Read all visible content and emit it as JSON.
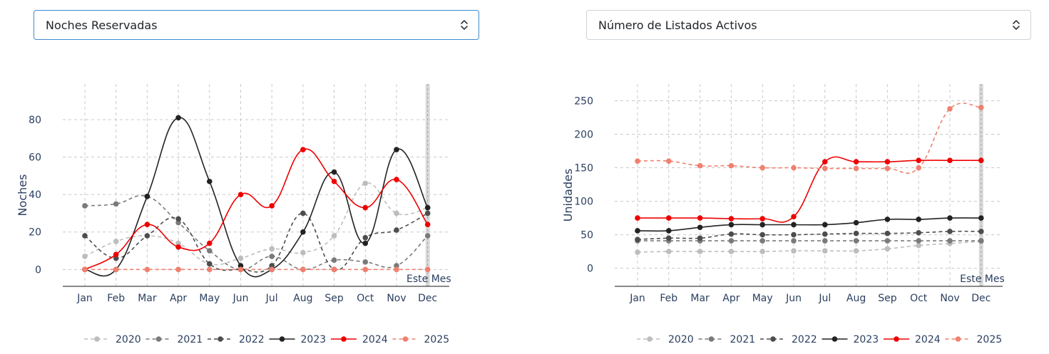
{
  "dropdowns": {
    "left": {
      "value": "Noches Reservadas",
      "icon": "chevron-updown-icon"
    },
    "right": {
      "value": "Número de Listados Activos",
      "icon": "chevron-updown-icon"
    }
  },
  "styles": {
    "2020": {
      "color": "#bdbdbd",
      "dash": "5,4"
    },
    "2021": {
      "color": "#7a7a7a",
      "dash": "5,4"
    },
    "2022": {
      "color": "#4d4d4d",
      "dash": "5,4"
    },
    "2023": {
      "color": "#222222",
      "dash": ""
    },
    "2024": {
      "color": "#ee0000",
      "dash": ""
    },
    "2025": {
      "color": "#f08070",
      "dash": "5,4"
    }
  },
  "chart_data": [
    {
      "type": "line",
      "ylabel": "Noches",
      "xlabel": "",
      "categories": [
        "Jan",
        "Feb",
        "Mar",
        "Apr",
        "May",
        "Jun",
        "Jul",
        "Aug",
        "Sep",
        "Oct",
        "Nov",
        "Dec"
      ],
      "ylim": [
        -9,
        99
      ],
      "yticks": [
        0,
        20,
        40,
        60,
        80
      ],
      "grid": true,
      "current_marker": "Dec",
      "current_label": "Este Mes",
      "legend_position": "bottom",
      "series": [
        {
          "name": "2020",
          "values": [
            7,
            15,
            18,
            14,
            3,
            6,
            11,
            9,
            18,
            46,
            30,
            33
          ]
        },
        {
          "name": "2021",
          "values": [
            34,
            35,
            39,
            25,
            10,
            0,
            7,
            0,
            5,
            4,
            2,
            18
          ]
        },
        {
          "name": "2022",
          "values": [
            18,
            6,
            18,
            27,
            3,
            0,
            2,
            30,
            0,
            17,
            21,
            30
          ]
        },
        {
          "name": "2023",
          "values": [
            0,
            0,
            39,
            81,
            47,
            2,
            0,
            20,
            52,
            14,
            64,
            33
          ]
        },
        {
          "name": "2024",
          "values": [
            0,
            8,
            24,
            12,
            14,
            40,
            34,
            64,
            47,
            33,
            48,
            24
          ]
        },
        {
          "name": "2025",
          "values": [
            0,
            0,
            0,
            0,
            0,
            0,
            0,
            0,
            0,
            0,
            0,
            0
          ]
        }
      ]
    },
    {
      "type": "line",
      "ylabel": "Unidades",
      "xlabel": "",
      "categories": [
        "Jan",
        "Feb",
        "Mar",
        "Apr",
        "May",
        "Jun",
        "Jul",
        "Aug",
        "Sep",
        "Oct",
        "Nov",
        "Dec"
      ],
      "ylim": [
        -27,
        275
      ],
      "yticks": [
        0,
        50,
        100,
        150,
        200,
        250
      ],
      "grid": true,
      "current_marker": "Dec",
      "current_label": "Este Mes",
      "legend_position": "bottom",
      "series": [
        {
          "name": "2020",
          "values": [
            24,
            25,
            25,
            25,
            25,
            26,
            26,
            26,
            29,
            34,
            37,
            40
          ]
        },
        {
          "name": "2021",
          "values": [
            41,
            41,
            41,
            41,
            41,
            41,
            41,
            41,
            41,
            41,
            41,
            41
          ]
        },
        {
          "name": "2022",
          "values": [
            43,
            45,
            45,
            51,
            50,
            50,
            51,
            52,
            52,
            53,
            55,
            55
          ]
        },
        {
          "name": "2023",
          "values": [
            56,
            56,
            61,
            65,
            65,
            65,
            65,
            68,
            73,
            73,
            75,
            75
          ]
        },
        {
          "name": "2024",
          "values": [
            75,
            75,
            75,
            74,
            74,
            77,
            159,
            159,
            159,
            161,
            161,
            161
          ]
        },
        {
          "name": "2025",
          "values": [
            160,
            160,
            153,
            153,
            150,
            150,
            149,
            149,
            149,
            150,
            238,
            240
          ]
        }
      ]
    }
  ]
}
